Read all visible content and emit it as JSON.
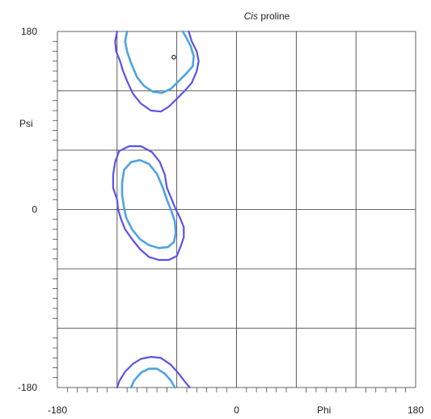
{
  "chart_data": {
    "type": "contour",
    "title_italic": "Cis",
    "title_rest": " proline",
    "xlabel": "Phi",
    "ylabel": "Psi",
    "xlim": [
      -180,
      180
    ],
    "ylim": [
      -180,
      180
    ],
    "x_tick_labels": [
      {
        "value": -180,
        "label": "-180"
      },
      {
        "value": 0,
        "label": "0"
      },
      {
        "value": 180,
        "label": "180"
      }
    ],
    "y_tick_labels": [
      {
        "value": 180,
        "label": "180"
      },
      {
        "value": 0,
        "label": "0"
      },
      {
        "value": -180,
        "label": "-180"
      }
    ],
    "grid_step": 60,
    "minor_tick_step": 10,
    "grid": true,
    "colors": {
      "outer_contour": "#5b52e8",
      "inner_contour": "#4ea3e0",
      "grid": "#333333",
      "point": "#000000"
    },
    "contours": [
      {
        "name": "allowed-upper",
        "level": "outer",
        "points": [
          [
            -120,
            180
          ],
          [
            -122,
            170
          ],
          [
            -121,
            160
          ],
          [
            -117,
            150
          ],
          [
            -114,
            140
          ],
          [
            -110,
            130
          ],
          [
            -104,
            117
          ],
          [
            -96,
            107
          ],
          [
            -86,
            100
          ],
          [
            -76,
            99
          ],
          [
            -68,
            104
          ],
          [
            -60,
            112
          ],
          [
            -52,
            120
          ],
          [
            -45,
            128
          ],
          [
            -40,
            140
          ],
          [
            -38,
            150
          ],
          [
            -40,
            160
          ],
          [
            -45,
            170
          ],
          [
            -48,
            180
          ]
        ]
      },
      {
        "name": "favoured-upper",
        "level": "inner",
        "points": [
          [
            -110,
            180
          ],
          [
            -112,
            170
          ],
          [
            -110,
            160
          ],
          [
            -106,
            148
          ],
          [
            -100,
            134
          ],
          [
            -93,
            125
          ],
          [
            -84,
            119
          ],
          [
            -75,
            118
          ],
          [
            -66,
            122
          ],
          [
            -58,
            130
          ],
          [
            -50,
            138
          ],
          [
            -44,
            145
          ],
          [
            -43,
            155
          ],
          [
            -46,
            165
          ],
          [
            -50,
            173
          ],
          [
            -54,
            180
          ]
        ]
      },
      {
        "name": "allowed-middle",
        "level": "outer",
        "points": [
          [
            -118,
            59
          ],
          [
            -122,
            48
          ],
          [
            -124,
            35
          ],
          [
            -124,
            22
          ],
          [
            -120,
            10
          ],
          [
            -119,
            0
          ],
          [
            -116,
            -10
          ],
          [
            -112,
            -20
          ],
          [
            -105,
            -30
          ],
          [
            -97,
            -40
          ],
          [
            -88,
            -48
          ],
          [
            -78,
            -51
          ],
          [
            -68,
            -51
          ],
          [
            -60,
            -47
          ],
          [
            -56,
            -37
          ],
          [
            -53,
            -28
          ],
          [
            -53,
            -18
          ],
          [
            -57,
            -8
          ],
          [
            -61,
            0
          ],
          [
            -65,
            10
          ],
          [
            -70,
            22
          ],
          [
            -72,
            35
          ],
          [
            -77,
            48
          ],
          [
            -85,
            58
          ],
          [
            -96,
            64
          ],
          [
            -108,
            64
          ],
          [
            -118,
            59
          ]
        ]
      },
      {
        "name": "favoured-middle",
        "level": "inner",
        "points": [
          [
            -113,
            40
          ],
          [
            -115,
            27
          ],
          [
            -115,
            15
          ],
          [
            -113,
            2
          ],
          [
            -111,
            -8
          ],
          [
            -105,
            -20
          ],
          [
            -97,
            -30
          ],
          [
            -88,
            -36
          ],
          [
            -78,
            -39
          ],
          [
            -69,
            -38
          ],
          [
            -63,
            -33
          ],
          [
            -61,
            -24
          ],
          [
            -62,
            -12
          ],
          [
            -66,
            0
          ],
          [
            -70,
            10
          ],
          [
            -74,
            22
          ],
          [
            -80,
            36
          ],
          [
            -88,
            46
          ],
          [
            -97,
            50
          ],
          [
            -106,
            48
          ],
          [
            -113,
            40
          ]
        ]
      },
      {
        "name": "allowed-lower",
        "level": "outer",
        "points": [
          [
            -120,
            -180
          ],
          [
            -118,
            -174
          ],
          [
            -112,
            -164
          ],
          [
            -104,
            -156
          ],
          [
            -96,
            -151
          ],
          [
            -86,
            -149
          ],
          [
            -76,
            -150
          ],
          [
            -66,
            -157
          ],
          [
            -58,
            -166
          ],
          [
            -52,
            -174
          ],
          [
            -47,
            -180
          ]
        ]
      },
      {
        "name": "favoured-lower",
        "level": "inner",
        "points": [
          [
            -106,
            -180
          ],
          [
            -103,
            -173
          ],
          [
            -96,
            -165
          ],
          [
            -88,
            -161
          ],
          [
            -80,
            -161
          ],
          [
            -72,
            -166
          ],
          [
            -66,
            -173
          ],
          [
            -62,
            -180
          ]
        ]
      }
    ],
    "points": [
      {
        "phi": -63,
        "psi": 154
      }
    ]
  }
}
